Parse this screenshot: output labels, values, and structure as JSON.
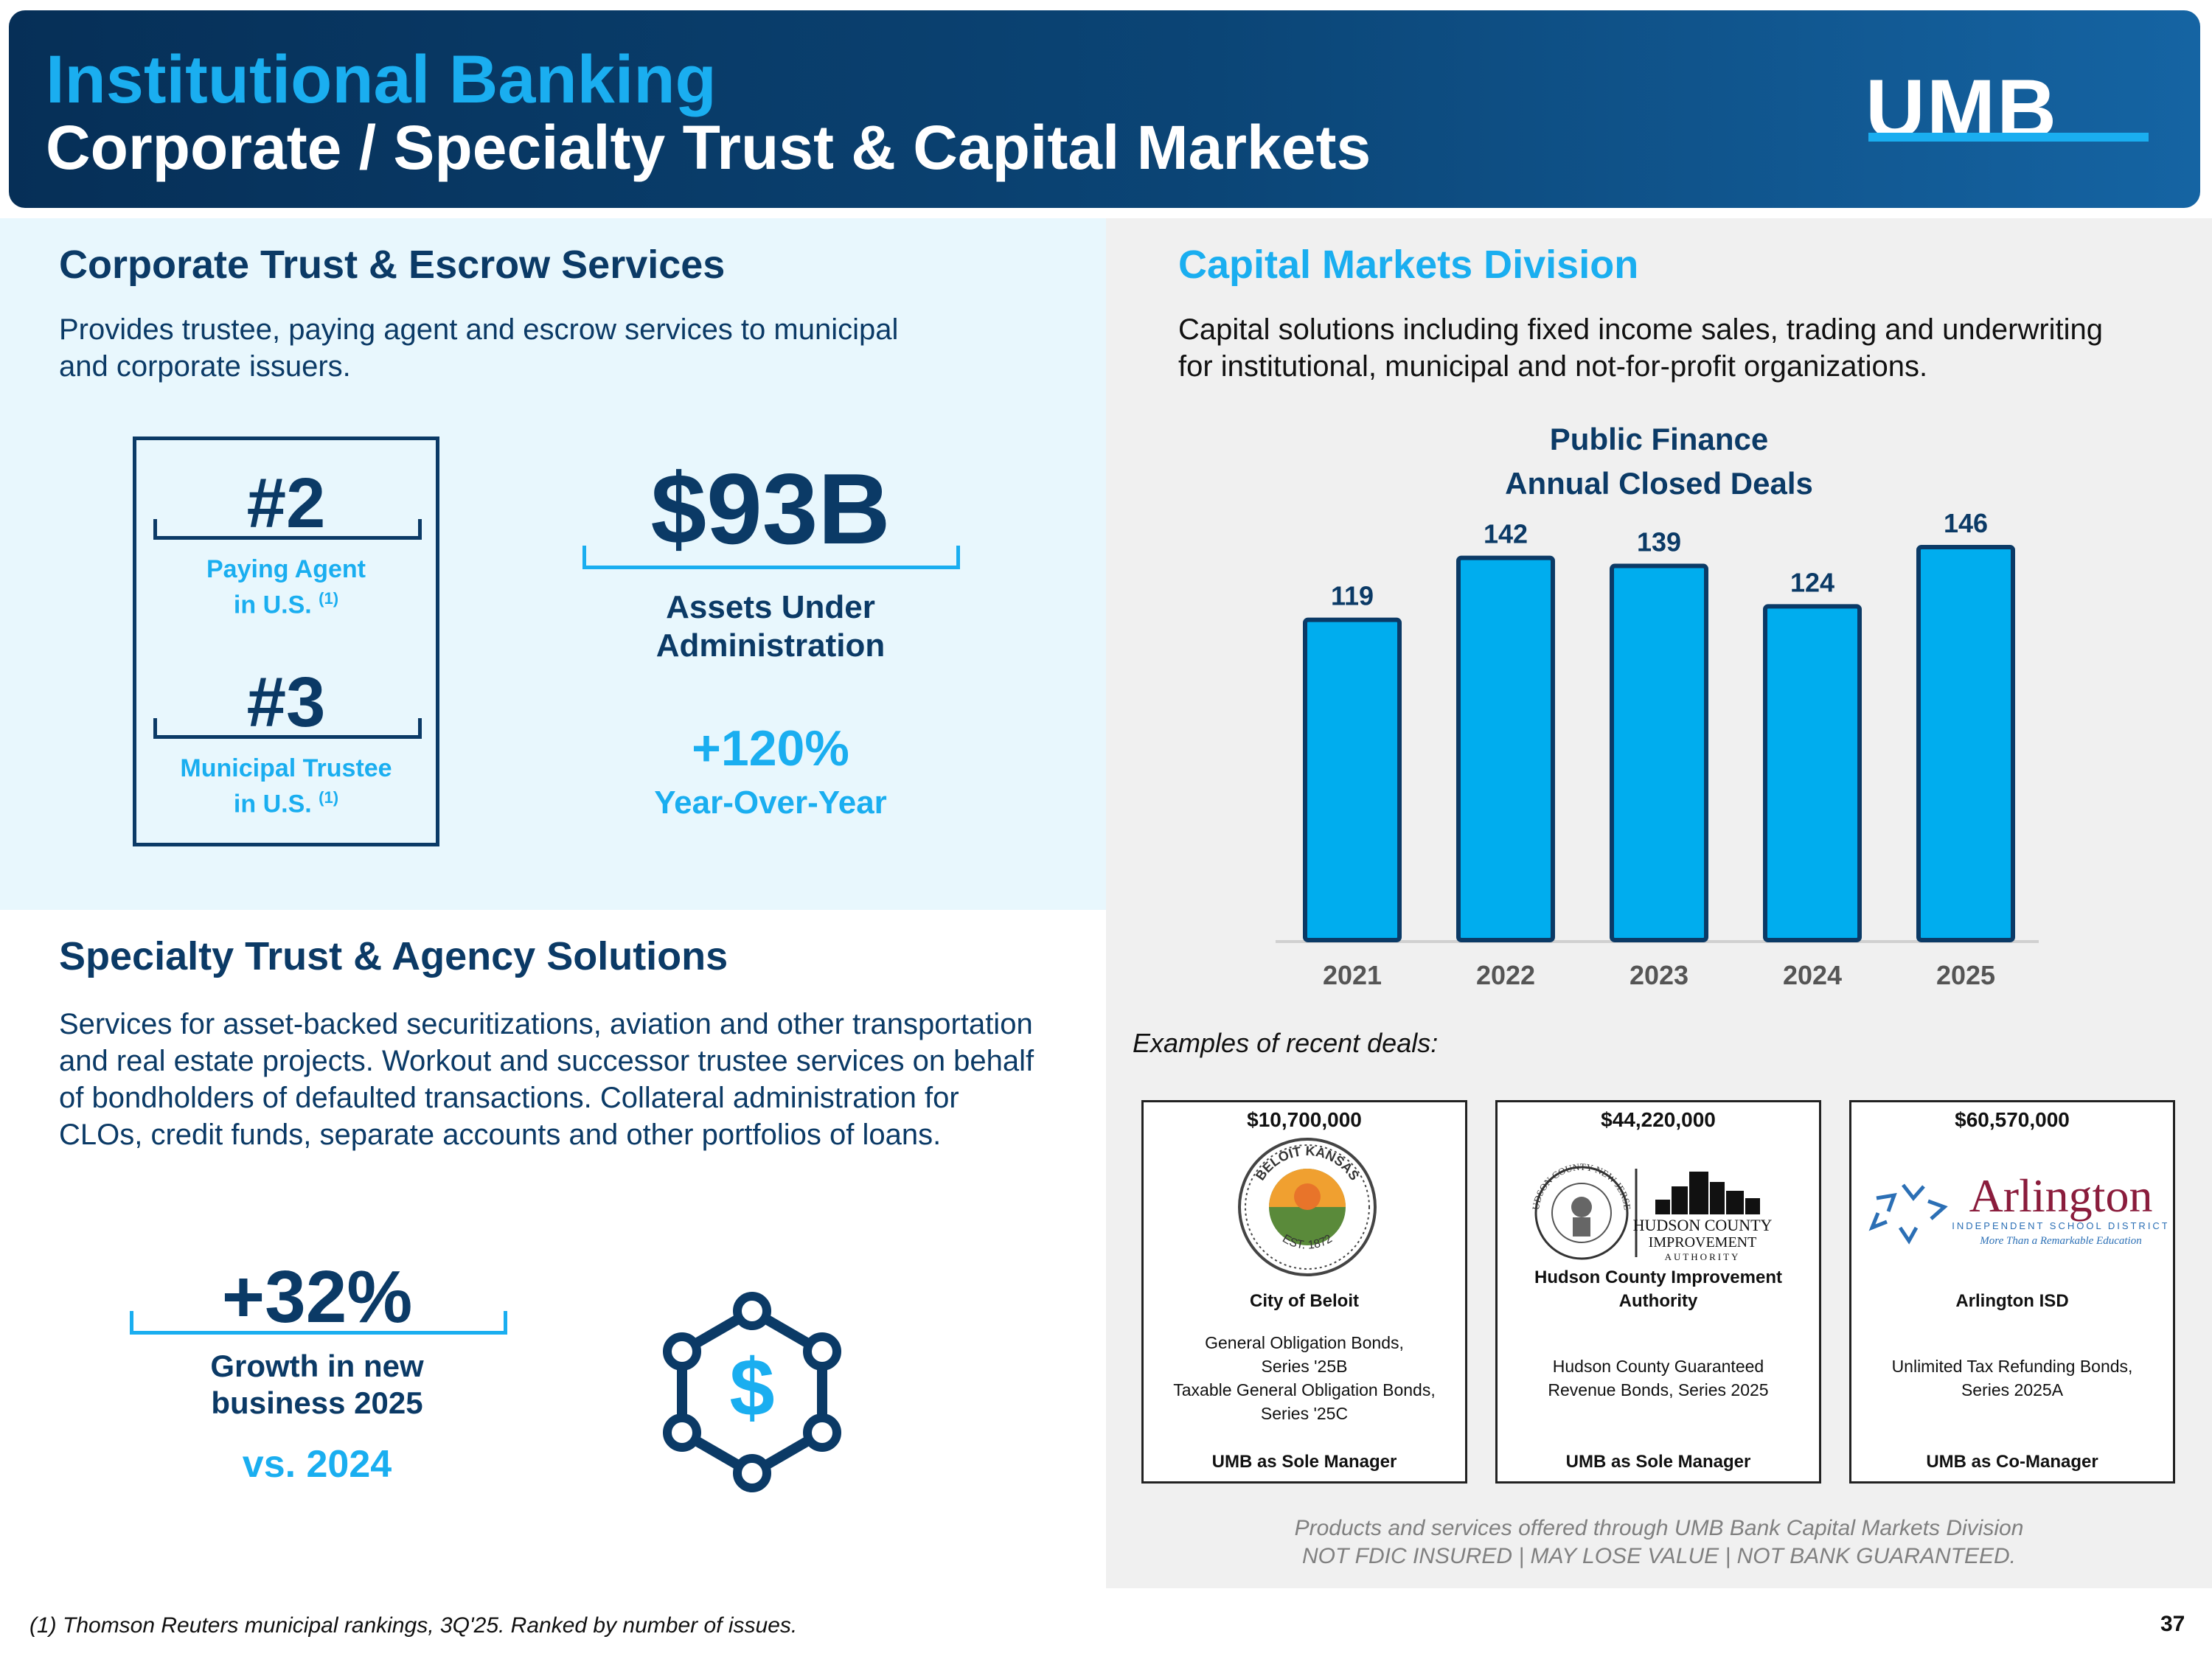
{
  "header": {
    "title": "Institutional Banking",
    "subtitle": "Corporate / Specialty Trust & Capital Markets",
    "logo_text": "UMB"
  },
  "corporate_trust": {
    "title": "Corporate Trust & Escrow Services",
    "description_lines": [
      "Provides trustee, paying agent and escrow services to municipal",
      "and corporate issuers."
    ],
    "rank1": {
      "value": "#2",
      "label_line1": "Paying Agent",
      "label_line2": "in U.S.",
      "footnote_ref": "(1)"
    },
    "rank2": {
      "value": "#3",
      "label_line1": "Municipal Trustee",
      "label_line2": "in U.S.",
      "footnote_ref": "(1)"
    },
    "aua": {
      "value": "$93B",
      "label_line1": "Assets Under",
      "label_line2": "Administration"
    },
    "growth": {
      "value": "+120%",
      "label": "Year-Over-Year"
    }
  },
  "specialty_trust": {
    "title": "Specialty Trust & Agency Solutions",
    "description_lines": [
      "Services for asset-backed securitizations, aviation and other transportation",
      "and real estate projects. Workout and successor trustee services on behalf",
      "of bondholders of defaulted transactions. Collateral administration for",
      "CLOs, credit funds, separate accounts and other portfolios of loans."
    ],
    "growth": {
      "value": "+32%",
      "label_line1": "Growth in new",
      "label_line2": "business 2025",
      "comparison": "vs. 2024"
    },
    "icon": "dollar-network-icon"
  },
  "capital_markets": {
    "title": "Capital Markets Division",
    "description_lines": [
      "Capital solutions including fixed income sales, trading and underwriting",
      "for institutional, municipal and not-for-profit organizations."
    ],
    "examples_label": "Examples of recent deals:",
    "deals": [
      {
        "amount": "$10,700,000",
        "logo_text_top": "BELOIT KANSAS",
        "logo_text_bottom": "EST. 1872",
        "issuer": "City of Beloit",
        "description_lines": [
          "General Obligation Bonds,",
          "Series '25B",
          "Taxable General Obligation Bonds,",
          "Series '25C"
        ],
        "role": "UMB as Sole Manager"
      },
      {
        "amount": "$44,220,000",
        "logo_seal_text": "HUDSON COUNTY NEW JERSEY",
        "logo_text_line1": "HUDSON COUNTY",
        "logo_text_line2": "IMPROVEMENT",
        "logo_text_line3": "AUTHORITY",
        "issuer_line1": "Hudson County Improvement",
        "issuer_line2": "Authority",
        "description_lines": [
          "Hudson County Guaranteed",
          "Revenue Bonds, Series 2025"
        ],
        "role": "UMB as Sole Manager"
      },
      {
        "amount": "$60,570,000",
        "logo_text_main": "Arlington",
        "logo_text_sub": "INDEPENDENT SCHOOL DISTRICT",
        "logo_tagline": "More Than a Remarkable Education",
        "issuer": "Arlington ISD",
        "description_lines": [
          "Unlimited Tax Refunding Bonds,",
          "Series 2025A"
        ],
        "role": "UMB as Co-Manager"
      }
    ],
    "disclaimer_line1": "Products and services offered through UMB Bank Capital Markets Division",
    "disclaimer_line2": "NOT FDIC INSURED | MAY LOSE VALUE  | NOT BANK GUARANTEED."
  },
  "chart_data": {
    "type": "bar",
    "title": "Public Finance Annual Closed Deals",
    "title_line1": "Public Finance",
    "title_line2": "Annual Closed Deals",
    "categories": [
      "2021",
      "2022",
      "2023",
      "2024",
      "2025"
    ],
    "values": [
      119,
      142,
      139,
      124,
      146
    ],
    "xlabel": "",
    "ylabel": "",
    "ylim": [
      0,
      146
    ],
    "grid": false,
    "legend": "none",
    "colors": {
      "bar_fill": "#00adee",
      "bar_stroke": "#0b3a66",
      "axis": "#d0d0d0"
    }
  },
  "footer": {
    "footnote": "(1) Thomson Reuters municipal rankings, 3Q'25. Ranked by number of issues.",
    "page_number": "37"
  },
  "colors": {
    "navy": "#0b3a66",
    "accent_blue": "#1aaef0"
  }
}
